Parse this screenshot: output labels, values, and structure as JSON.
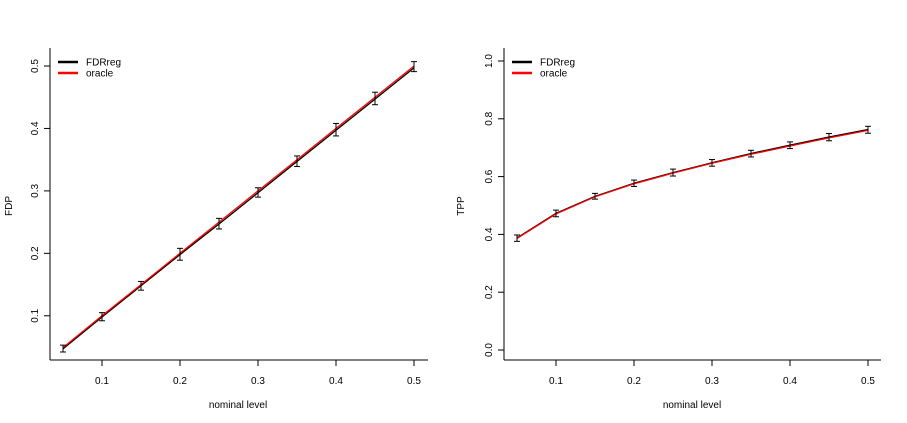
{
  "chart_data": [
    {
      "type": "line",
      "panel": "left",
      "xlabel": "nominal level",
      "ylabel": "FDP",
      "xlim": [
        0.05,
        0.5
      ],
      "ylim": [
        0.04,
        0.51
      ],
      "xticks": [
        0.1,
        0.2,
        0.3,
        0.4,
        0.5
      ],
      "xtick_labels": [
        "0.1",
        "0.2",
        "0.3",
        "0.4",
        "0.5"
      ],
      "yticks": [
        0.1,
        0.2,
        0.3,
        0.4,
        0.5
      ],
      "ytick_labels": [
        "0.1",
        "0.2",
        "0.3",
        "0.4",
        "0.5"
      ],
      "x": [
        0.05,
        0.1,
        0.15,
        0.2,
        0.25,
        0.3,
        0.35,
        0.4,
        0.45,
        0.5
      ],
      "series": [
        {
          "name": "FDRreg",
          "color": "#000000",
          "values": [
            0.047,
            0.098,
            0.148,
            0.198,
            0.247,
            0.297,
            0.347,
            0.397,
            0.447,
            0.497
          ]
        },
        {
          "name": "oracle",
          "color": "#ff0000",
          "values": [
            0.049,
            0.1,
            0.15,
            0.2,
            0.25,
            0.3,
            0.35,
            0.4,
            0.45,
            0.5
          ]
        }
      ],
      "error_bars": {
        "low": [
          0.042,
          0.092,
          0.141,
          0.189,
          0.239,
          0.29,
          0.339,
          0.388,
          0.438,
          0.491
        ],
        "high": [
          0.053,
          0.105,
          0.155,
          0.208,
          0.256,
          0.305,
          0.356,
          0.408,
          0.458,
          0.507
        ]
      },
      "legend": {
        "position": "top-left",
        "entries": [
          "FDRreg",
          "oracle"
        ]
      },
      "grid": false
    },
    {
      "type": "line",
      "panel": "right",
      "xlabel": "nominal level",
      "ylabel": "TPP",
      "xlim": [
        0.05,
        0.5
      ],
      "ylim": [
        0.0,
        1.0
      ],
      "xticks": [
        0.1,
        0.2,
        0.3,
        0.4,
        0.5
      ],
      "xtick_labels": [
        "0.1",
        "0.2",
        "0.3",
        "0.4",
        "0.5"
      ],
      "yticks": [
        0.0,
        0.2,
        0.4,
        0.6,
        0.8,
        1.0
      ],
      "ytick_labels": [
        "0.0",
        "0.2",
        "0.4",
        "0.6",
        "0.8",
        "1.0"
      ],
      "x": [
        0.05,
        0.1,
        0.15,
        0.2,
        0.25,
        0.3,
        0.35,
        0.4,
        0.45,
        0.5
      ],
      "series": [
        {
          "name": "FDRreg",
          "color": "#000000",
          "values": [
            0.388,
            0.473,
            0.532,
            0.577,
            0.614,
            0.648,
            0.68,
            0.709,
            0.737,
            0.763
          ]
        },
        {
          "name": "oracle",
          "color": "#ff0000",
          "values": [
            0.386,
            0.471,
            0.53,
            0.575,
            0.612,
            0.646,
            0.677,
            0.706,
            0.734,
            0.76
          ]
        }
      ],
      "error_bars": {
        "low": [
          0.376,
          0.461,
          0.522,
          0.566,
          0.602,
          0.636,
          0.668,
          0.697,
          0.724,
          0.75
        ],
        "high": [
          0.398,
          0.484,
          0.542,
          0.588,
          0.626,
          0.659,
          0.691,
          0.72,
          0.749,
          0.774
        ]
      },
      "legend": {
        "position": "top-left",
        "entries": [
          "FDRreg",
          "oracle"
        ]
      },
      "grid": false
    }
  ]
}
